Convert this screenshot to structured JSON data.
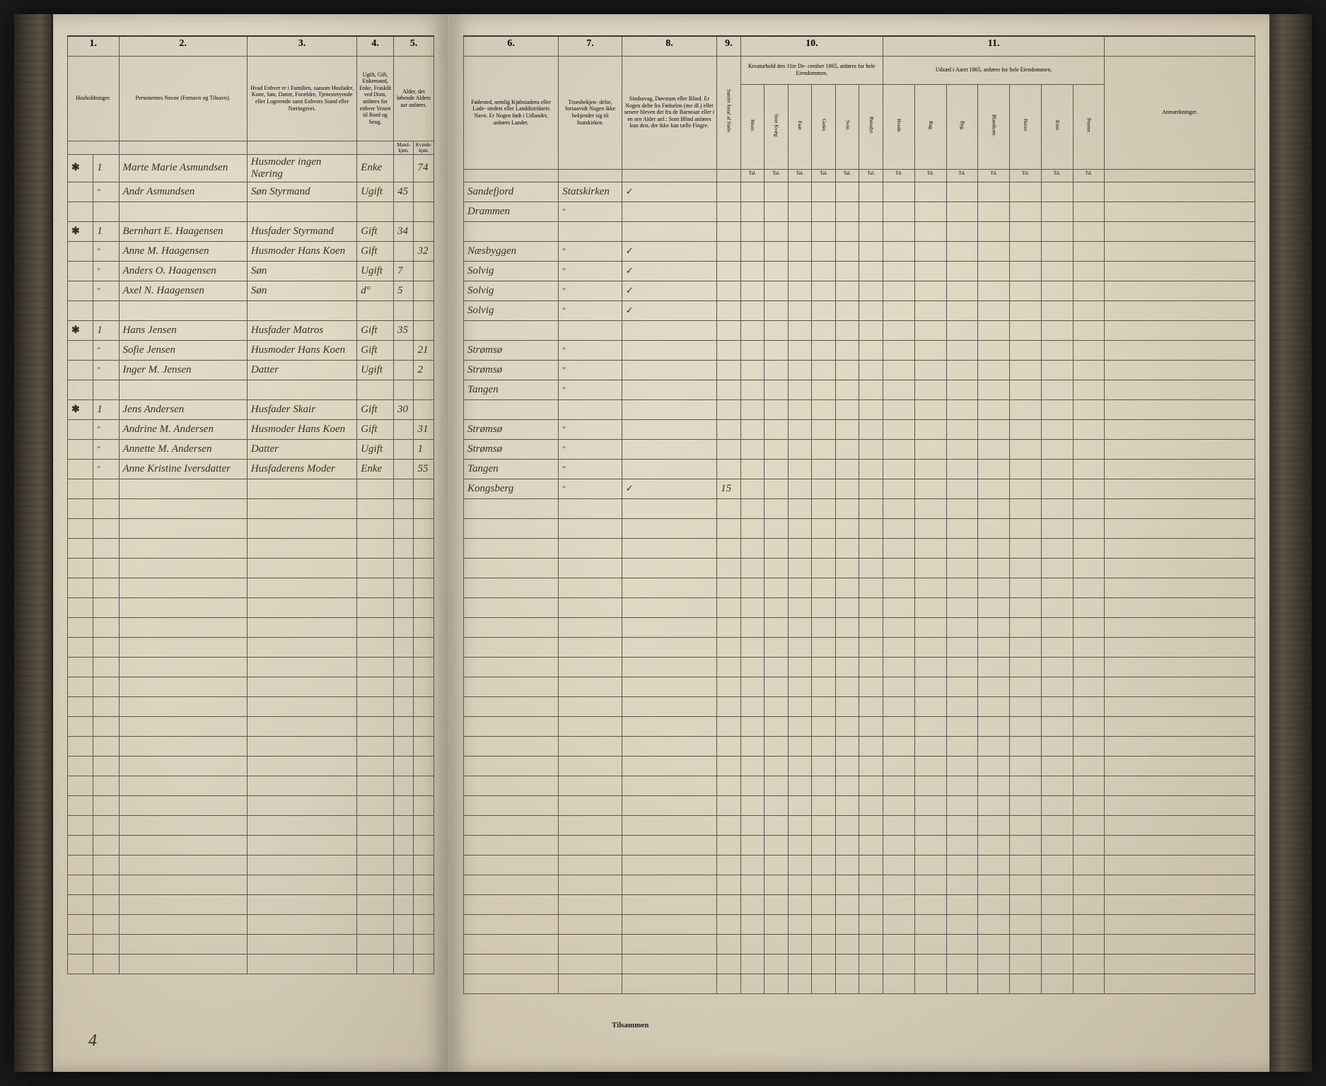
{
  "page": {
    "background_color": "#e8e2d0",
    "border_color": "#555555",
    "ink_color": "#3a2f1f",
    "print_color": "#222222",
    "page_number": "4",
    "footer_label": "Tilsammen"
  },
  "columns_left": {
    "nums": [
      "1.",
      "2.",
      "3.",
      "4.",
      "5."
    ],
    "headers": [
      "Husholdninger.",
      "Personernes Navne (Fornavn og Tilnavn).",
      "Hvad Enhver er i Familien, saasom Husfader, Kone, Søn, Datter, Forældre, Tjenestetyende eller Logerende samt Enhvers Stand eller Næringsvei.",
      "Ugift, Gift, Enkemand, Enke, Fraskilt ved Dom, anføres for enhver Voxen til Bord og Seng.",
      "Alder, det løbende Alders aar anføres."
    ],
    "sub_headers": [
      "",
      "",
      "",
      "",
      "Mand-kjøn.",
      "Kvinde-kjøn."
    ]
  },
  "columns_right": {
    "nums": [
      "6.",
      "7.",
      "8.",
      "9.",
      "10.",
      "11.",
      ""
    ],
    "headers": [
      "Fødested, nemlig Kjøbstadens eller Lade- stedets eller Landdistriktets Navn. Er Nogen født i Udlandet, anføres Landet.",
      "Troesbekjen- delse, forsaavidt Nogen ikke bekjender sig til Statskirken.",
      "Sindssvag, Døvstum eller Blind. Er Nogen delte fra Fødselen (me df.) eller senere bleven det fra de Barneaar eller i en sen Alder anf.: Som Blind anføres kun den, der ikke kan tælle Fingre.",
      "",
      "Kreaturhold den 31te De- cember 1865, anføres for hele Eiendommen.",
      "Udsæd i Aaret 1865, anføres for hele Eiendommen.",
      "Anmærkninger."
    ],
    "sub9": [
      "Samlet Antal af Siæle."
    ],
    "sub10": [
      "Heste.",
      "Stort Kvæg.",
      "Faar.",
      "Geder.",
      "Svin.",
      "Rensdyr."
    ],
    "sub10b": [
      "Tal.",
      "Tal.",
      "Tal.",
      "Tal.",
      "Tal.",
      "Tal."
    ],
    "sub11": [
      "Hvede.",
      "Rug.",
      "Byg.",
      "Blandkorn.",
      "Havre.",
      "Erter.",
      "Poteter."
    ],
    "sub11b": [
      "Td.",
      "Td.",
      "Td.",
      "Td.",
      "Td.",
      "Td.",
      "Td."
    ]
  },
  "rows": [
    {
      "mark": "✱",
      "num": "1",
      "name": "Marte Marie Asmundsen",
      "role": "Husmoder ingen Næring",
      "status": "Enke",
      "age_m": "",
      "age_f": "74",
      "place": "Sandefjord",
      "faith": "Statskirken",
      "cond": "✓"
    },
    {
      "mark": "",
      "num": "\"",
      "name": "Andr Asmundsen",
      "role": "Søn   Styrmand",
      "status": "Ugift",
      "age_m": "45",
      "age_f": "",
      "place": "Drammen",
      "faith": "\"",
      "cond": ""
    },
    {
      "break": true
    },
    {
      "mark": "✱",
      "num": "1",
      "name": "Bernhart E. Haagensen",
      "role": "Husfader  Styrmand",
      "status": "Gift",
      "age_m": "34",
      "age_f": "",
      "place": "Næsbyggen",
      "faith": "\"",
      "cond": "✓"
    },
    {
      "mark": "",
      "num": "\"",
      "name": "Anne M. Haagensen",
      "role": "Husmoder Hans Koen",
      "status": "Gift",
      "age_m": "",
      "age_f": "32",
      "place": "Solvig",
      "faith": "\"",
      "cond": "✓"
    },
    {
      "mark": "",
      "num": "\"",
      "name": "Anders O. Haagensen",
      "role": "Søn",
      "status": "Ugift",
      "age_m": "7",
      "age_f": "",
      "place": "Solvig",
      "faith": "\"",
      "cond": "✓"
    },
    {
      "mark": "",
      "num": "\"",
      "name": "Axel N. Haagensen",
      "role": "Søn",
      "status": "d°",
      "age_m": "5",
      "age_f": "",
      "place": "Solvig",
      "faith": "\"",
      "cond": "✓"
    },
    {
      "break": true
    },
    {
      "mark": "✱",
      "num": "1",
      "name": "Hans Jensen",
      "role": "Husfader  Matros",
      "status": "Gift",
      "age_m": "35",
      "age_f": "",
      "place": "Strømsø",
      "faith": "\"",
      "cond": ""
    },
    {
      "mark": "",
      "num": "\"",
      "name": "Sofie Jensen",
      "role": "Husmoder Hans Koen",
      "status": "Gift",
      "age_m": "",
      "age_f": "21",
      "place": "Strømsø",
      "faith": "\"",
      "cond": ""
    },
    {
      "mark": "",
      "num": "\"",
      "name": "Inger M. Jensen",
      "role": "Datter",
      "status": "Ugift",
      "age_m": "",
      "age_f": "2",
      "place": "Tangen",
      "faith": "\"",
      "cond": ""
    },
    {
      "break": true
    },
    {
      "mark": "✱",
      "num": "1",
      "name": "Jens Andersen",
      "role": "Husfader  Skair",
      "status": "Gift",
      "age_m": "30",
      "age_f": "",
      "place": "Strømsø",
      "faith": "\"",
      "cond": ""
    },
    {
      "mark": "",
      "num": "\"",
      "name": "Andrine M. Andersen",
      "role": "Husmoder Hans Koen",
      "status": "Gift",
      "age_m": "",
      "age_f": "31",
      "place": "Strømsø",
      "faith": "\"",
      "cond": ""
    },
    {
      "mark": "",
      "num": "\"",
      "name": "Annette M. Andersen",
      "role": "Datter",
      "status": "Ugift",
      "age_m": "",
      "age_f": "1",
      "place": "Tangen",
      "faith": "\"",
      "cond": ""
    },
    {
      "mark": "",
      "num": "\"",
      "name": "Anne Kristine Iversdatter",
      "role": "Husfaderens Moder",
      "status": "Enke",
      "age_m": "",
      "age_f": "55",
      "place": "Kongsberg",
      "faith": "\"",
      "cond": "✓"
    },
    {
      "break": true
    }
  ],
  "empty_rows_count": 24,
  "right_special": {
    "row": 16,
    "col9": "15"
  }
}
